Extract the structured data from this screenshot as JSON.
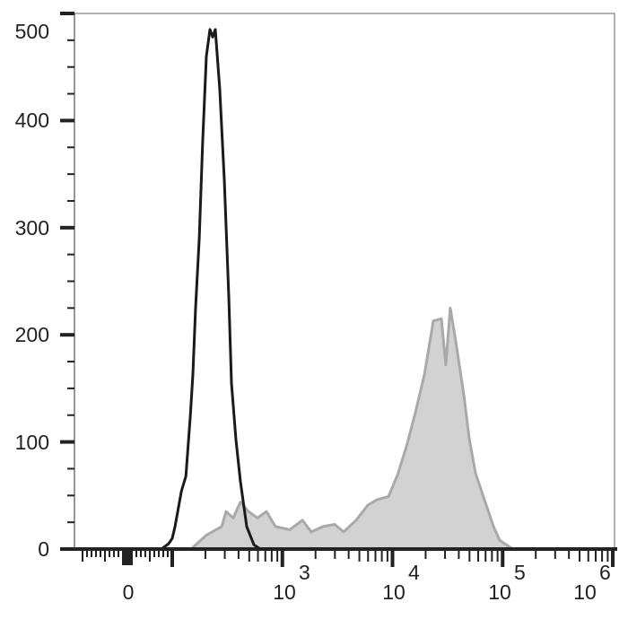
{
  "chart_data": {
    "type": "area",
    "title": "",
    "xlabel": "",
    "ylabel": "",
    "x_scale": "biexponential",
    "xlim": [
      -100,
      1000000
    ],
    "ylim": [
      0,
      500
    ],
    "grid": false,
    "y_ticks": [
      "0",
      "100",
      "200",
      "300",
      "400",
      "500"
    ],
    "y_tick_values": [
      0,
      100,
      200,
      300,
      400,
      500
    ],
    "x_ticks": [
      {
        "value": 0,
        "base": "0",
        "exp": ""
      },
      {
        "value": 1000,
        "base": "10",
        "exp": "3"
      },
      {
        "value": 10000,
        "base": "10",
        "exp": "4"
      },
      {
        "value": 100000,
        "base": "10",
        "exp": "5"
      },
      {
        "value": 1000000,
        "base": "10",
        "exp": "6"
      }
    ],
    "series": [
      {
        "style": "outline",
        "color": "#1a1a1a",
        "points": [
          [
            56,
            0
          ],
          [
            76,
            0
          ],
          [
            92,
            5
          ],
          [
            100,
            10
          ],
          [
            106,
            21
          ],
          [
            121,
            54
          ],
          [
            133,
            68
          ],
          [
            146,
            125
          ],
          [
            154,
            163
          ],
          [
            163,
            225
          ],
          [
            176,
            290
          ],
          [
            189,
            380
          ],
          [
            204,
            460
          ],
          [
            220,
            485
          ],
          [
            233,
            478
          ],
          [
            246,
            485
          ],
          [
            270,
            430
          ],
          [
            297,
            345
          ],
          [
            326,
            236
          ],
          [
            345,
            155
          ],
          [
            379,
            102
          ],
          [
            416,
            63
          ],
          [
            474,
            21
          ],
          [
            551,
            4
          ],
          [
            629,
            0
          ],
          [
            759,
            0
          ]
        ]
      },
      {
        "style": "filled",
        "color": "#a9a9ab",
        "fill": "#d2d2d3",
        "points": [
          [
            148,
            0
          ],
          [
            204,
            13
          ],
          [
            281,
            21
          ],
          [
            308,
            35
          ],
          [
            358,
            29
          ],
          [
            416,
            44
          ],
          [
            493,
            35
          ],
          [
            594,
            29
          ],
          [
            717,
            35
          ],
          [
            865,
            21
          ],
          [
            1167,
            18
          ],
          [
            1520,
            27
          ],
          [
            1830,
            16
          ],
          [
            2340,
            21
          ],
          [
            2980,
            23
          ],
          [
            3600,
            16
          ],
          [
            4680,
            27
          ],
          [
            5970,
            41
          ],
          [
            7200,
            46
          ],
          [
            9190,
            49
          ],
          [
            11100,
            69
          ],
          [
            13400,
            96
          ],
          [
            16100,
            127
          ],
          [
            19500,
            163
          ],
          [
            23500,
            213
          ],
          [
            27800,
            215
          ],
          [
            30500,
            172
          ],
          [
            33500,
            225
          ],
          [
            37500,
            194
          ],
          [
            44400,
            144
          ],
          [
            49800,
            103
          ],
          [
            56700,
            71
          ],
          [
            68400,
            46
          ],
          [
            82600,
            21
          ],
          [
            94200,
            8
          ],
          [
            115600,
            2
          ],
          [
            124700,
            0
          ]
        ]
      }
    ]
  }
}
